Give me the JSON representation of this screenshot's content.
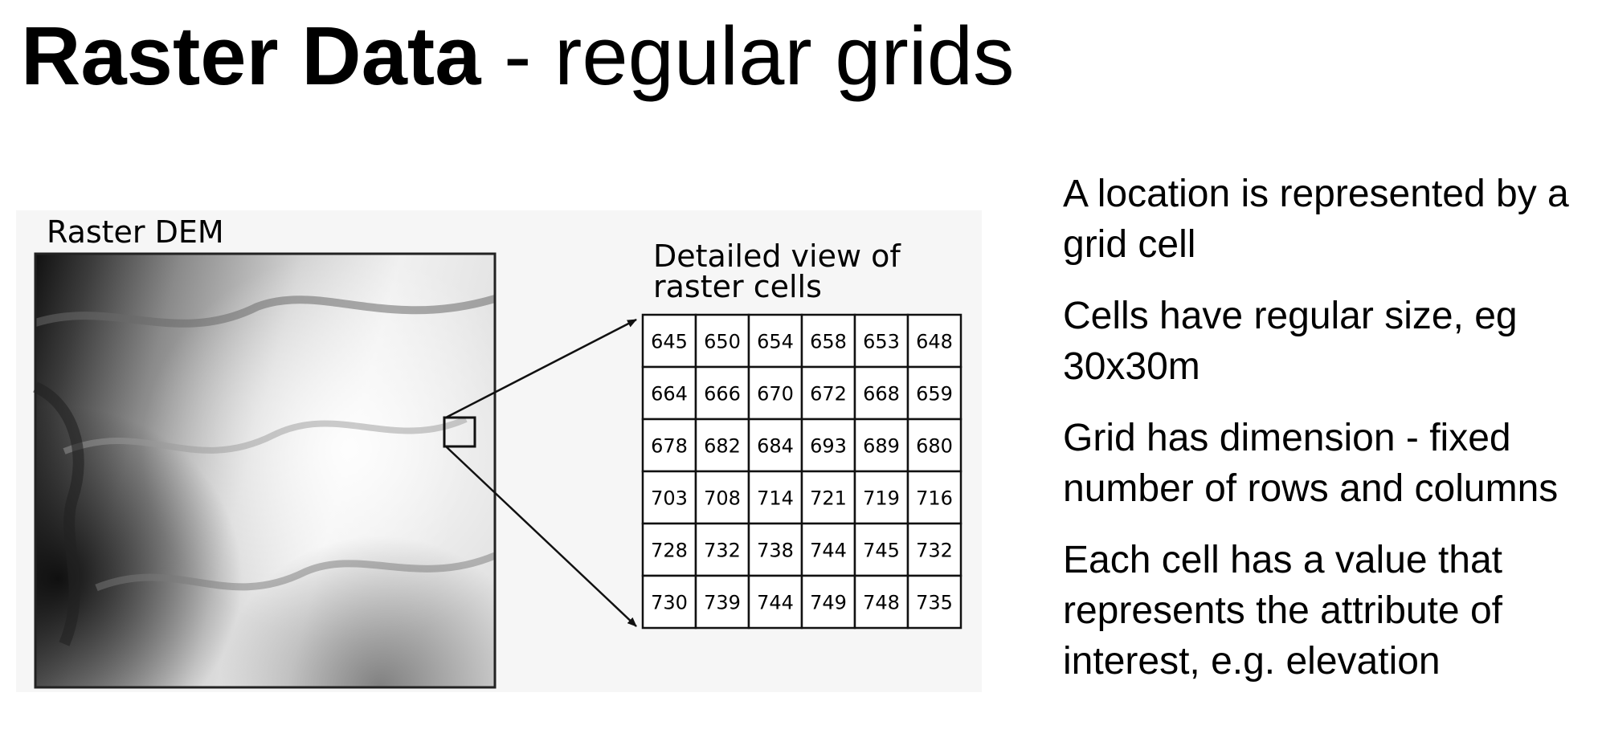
{
  "slide": {
    "title_bold": "Raster Data",
    "title_rest": " - regular grids"
  },
  "figure": {
    "dem_label": "Raster DEM",
    "detail_label_line1": "Detailed view of",
    "detail_label_line2": "raster cells",
    "grid_values": [
      [
        "645",
        "650",
        "654",
        "658",
        "653",
        "648"
      ],
      [
        "664",
        "666",
        "670",
        "672",
        "668",
        "659"
      ],
      [
        "678",
        "682",
        "684",
        "693",
        "689",
        "680"
      ],
      [
        "703",
        "708",
        "714",
        "721",
        "719",
        "716"
      ],
      [
        "728",
        "732",
        "738",
        "744",
        "745",
        "732"
      ],
      [
        "730",
        "739",
        "744",
        "749",
        "748",
        "735"
      ]
    ]
  },
  "bullets": [
    "A location is represented by a grid cell",
    "Cells have regular size, eg 30x30m",
    "Grid has dimension - fixed number of rows and columns",
    "Each cell has a value that represents the attribute of interest, e.g. elevation"
  ]
}
